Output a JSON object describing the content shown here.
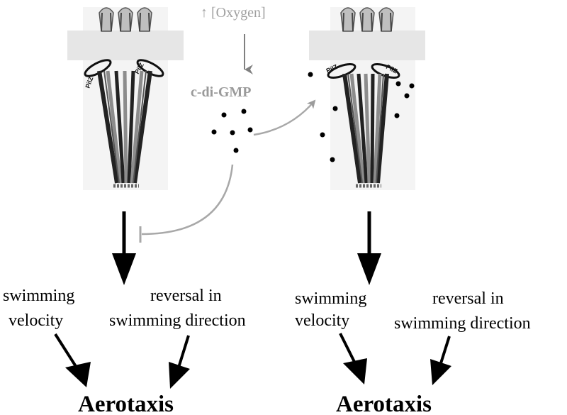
{
  "header": {
    "oxygen_arrow_glyph": "↑",
    "oxygen_label": "[Oxygen]",
    "second_messenger": "c-di-GMP"
  },
  "left_panel": {
    "pilz_labels": [
      "PilZ",
      "PilZ"
    ],
    "output_1": [
      "swimming",
      "velocity"
    ],
    "output_2": [
      "reversal in",
      "swimming direction"
    ],
    "result": "Aerotaxis"
  },
  "right_panel": {
    "pilz_labels": [
      "PilZ",
      "PilZ"
    ],
    "output_1": [
      "swimming",
      "velocity"
    ],
    "output_2": [
      "reversal in",
      "swimming direction"
    ],
    "result": "Aerotaxis"
  },
  "colors": {
    "membrane": "#ececec",
    "background_panel": "#f4f4f4",
    "dark_filament": "#2a2a2a",
    "grey_filament": "#8c8c8c",
    "signal_line": "#a8a8a8",
    "oxygen_text": "#a0a0a0",
    "cdigmp_text": "#9a9a9a",
    "arrow": "#000000"
  },
  "icons": {
    "oxygen_increase": "up-arrow-icon",
    "molecule": "dot-icon",
    "inhibition": "t-bar-icon"
  }
}
